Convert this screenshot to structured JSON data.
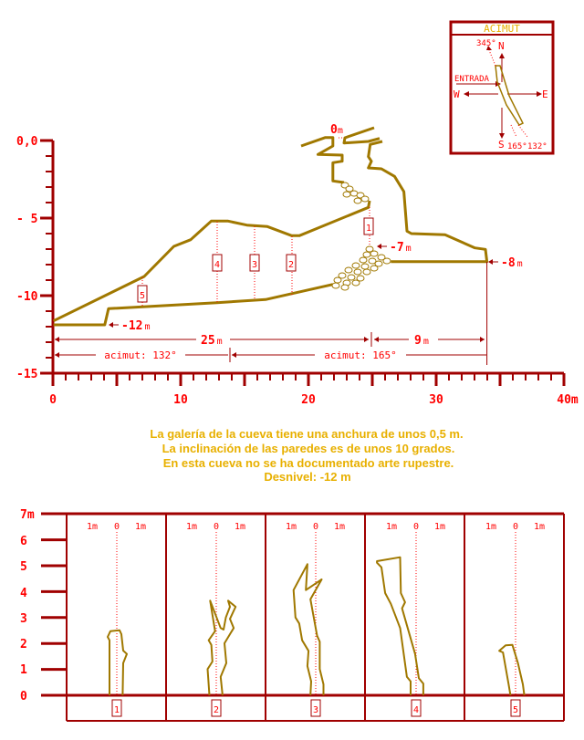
{
  "compass": {
    "title": "ACIMUT",
    "north": "N",
    "south": "S",
    "east": "E",
    "west": "W",
    "entrance": "ENTRADA",
    "bearing_345": "345°",
    "bearing_165": "165°",
    "bearing_132": "132°"
  },
  "profile": {
    "y_ticks": [
      "0,0",
      "- 5",
      "-10",
      "-15"
    ],
    "x_ticks": [
      "0",
      "10",
      "20",
      "30",
      "40m"
    ],
    "depth_entrance": "0",
    "depth_minus7": "-7",
    "depth_minus8": "-8",
    "depth_minus12": "-12",
    "unit": "m",
    "dist_25": "25",
    "dist_9": "9",
    "azimuth_132": "acimut:  132°",
    "azimuth_165": "acimut:  165°",
    "section_markers": [
      "1",
      "2",
      "3",
      "4",
      "5"
    ]
  },
  "notes": [
    "La galería de la cueva tiene una anchura de unos 0,5 m.",
    "La inclinación de las paredes es de unos 10 grados.",
    "En esta cueva no  se ha documentado arte rupestre.",
    "Desnivel:  -12 m"
  ],
  "sections": {
    "y_ticks": [
      "7m",
      "6",
      "5",
      "4",
      "3",
      "2",
      "1",
      "0"
    ],
    "scale_left": "1m",
    "scale_center": "0",
    "scale_right": "1m",
    "labels": [
      "1",
      "2",
      "3",
      "4",
      "5"
    ]
  },
  "colors": {
    "axis": "#a00000",
    "label": "#ff0000",
    "cave": "#a07800",
    "note": "#e8b000"
  }
}
